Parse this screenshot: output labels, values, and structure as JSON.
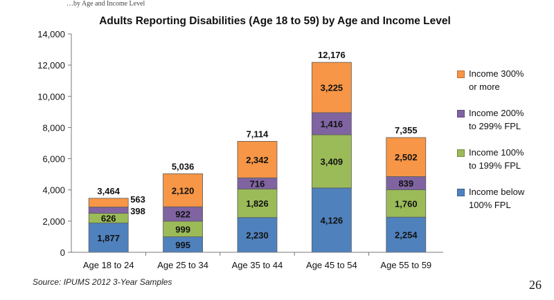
{
  "header": {
    "topline": "…by Age and Income Level"
  },
  "footer": {
    "source": "Source: IPUMS 2012 3-Year Samples",
    "page_number": "26"
  },
  "colors": {
    "below_100": "#4F81BD",
    "income_100_199": "#9BBB59",
    "income_200_299": "#8064A2",
    "income_300_plus": "#F79646"
  },
  "legend": [
    {
      "line1": "Income 300%",
      "line2": "or more",
      "color": "#F79646"
    },
    {
      "line1": "Income 200%",
      "line2": "to 299% FPL",
      "color": "#8064A2"
    },
    {
      "line1": "Income 100%",
      "line2": "to 199% FPL",
      "color": "#9BBB59"
    },
    {
      "line1": "Income below",
      "line2": "100% FPL",
      "color": "#4F81BD"
    }
  ],
  "chart_data": {
    "type": "bar",
    "stacked": true,
    "title": "Adults Reporting Disabilities (Age 18 to 59) by Age and Income Level",
    "categories": [
      "Age 18 to 24",
      "Age 25 to 34",
      "Age 35 to 44",
      "Age 45 to 54",
      "Age 55 to 59"
    ],
    "series": [
      {
        "name": "Income below 100% FPL",
        "color": "#4F81BD",
        "values": [
          1877,
          995,
          2230,
          4126,
          2254
        ]
      },
      {
        "name": "Income 100% to 199% FPL",
        "color": "#9BBB59",
        "values": [
          626,
          999,
          1826,
          3409,
          1760
        ]
      },
      {
        "name": "Income 200% to 299% FPL",
        "color": "#8064A2",
        "values": [
          398,
          922,
          716,
          1416,
          839
        ]
      },
      {
        "name": "Income 300% or more",
        "color": "#F79646",
        "values": [
          563,
          2120,
          2342,
          3225,
          2502
        ]
      }
    ],
    "segment_labels": [
      [
        "1,877",
        "995",
        "2,230",
        "4,126",
        "2,254"
      ],
      [
        "626",
        "999",
        "1,826",
        "3,409",
        "1,760"
      ],
      [
        "398",
        "922",
        "716",
        "1,416",
        "839"
      ],
      [
        "563",
        "2,120",
        "2,342",
        "3,225",
        "2,502"
      ]
    ],
    "totals": [
      3464,
      5036,
      7114,
      12176,
      7355
    ],
    "total_labels": [
      "3,464",
      "5,036",
      "7,114",
      "12,176",
      "7,355"
    ],
    "ylim": [
      0,
      14000
    ],
    "yticks": [
      0,
      2000,
      4000,
      6000,
      8000,
      10000,
      12000,
      14000
    ],
    "ytick_labels": [
      "0",
      "2,000",
      "4,000",
      "6,000",
      "8,000",
      "10,000",
      "12,000",
      "14,000"
    ],
    "xlabel": "",
    "ylabel": "",
    "grid": false,
    "legend_position": "right"
  }
}
